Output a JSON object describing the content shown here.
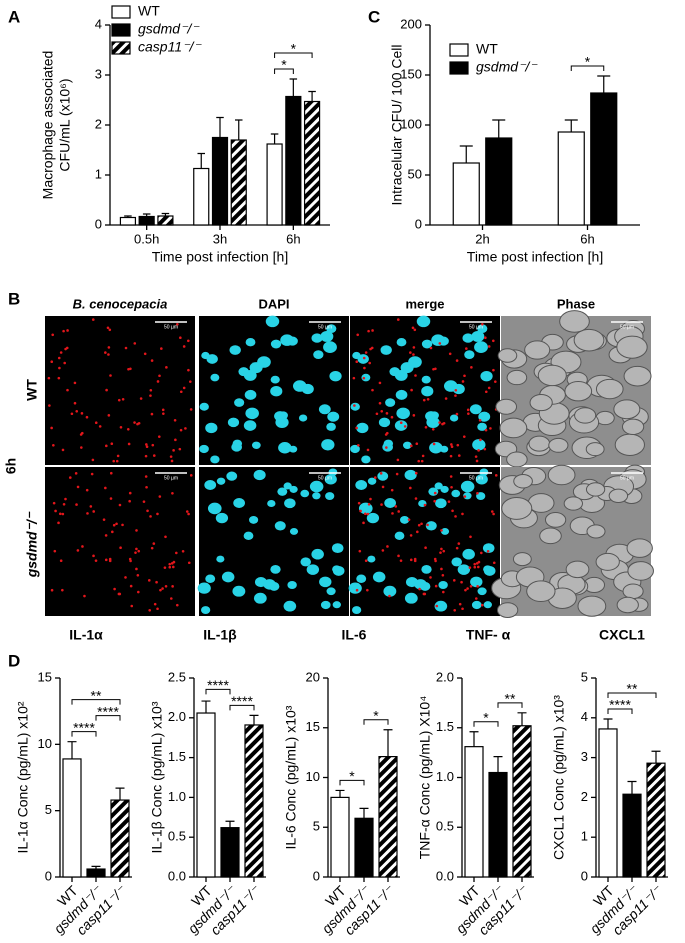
{
  "panel_labels": [
    "A",
    "B",
    "C",
    "D"
  ],
  "chart_data": [
    {
      "type": "bar",
      "ylabel": [
        "Macrophage associated",
        "CFU/mL (x10⁶)"
      ],
      "xlabel": "Time post infection [h]",
      "categories": [
        "0.5h",
        "3h",
        "6h"
      ],
      "series": [
        {
          "name": "WT",
          "color": "#ffffff",
          "values": [
            0.15,
            1.13,
            1.62
          ],
          "errors": [
            0.03,
            0.3,
            0.2
          ]
        },
        {
          "name": "gsdmd⁻/⁻",
          "color": "#000000",
          "values": [
            0.17,
            1.75,
            2.57
          ],
          "errors": [
            0.05,
            0.4,
            0.35
          ]
        },
        {
          "name": "casp11⁻/⁻",
          "color": "#000000",
          "hatch": true,
          "values": [
            0.18,
            1.7,
            2.47
          ],
          "errors": [
            0.05,
            0.4,
            0.2
          ]
        }
      ],
      "ylim": [
        0,
        4
      ],
      "yticks": [
        0,
        1,
        2,
        3,
        4
      ],
      "legend": "upper left",
      "significance": [
        {
          "category": 2,
          "pair": [
            0,
            1
          ],
          "label": "*"
        },
        {
          "category": 2,
          "pair": [
            0,
            2
          ],
          "label": "*"
        }
      ]
    },
    {
      "type": "bar",
      "ylabel": [
        "Intracelular CFU/ 100 Cell"
      ],
      "xlabel": "Time post infection [h]",
      "categories": [
        "2h",
        "6h"
      ],
      "series": [
        {
          "name": "WT",
          "color": "#ffffff",
          "values": [
            62,
            93
          ],
          "errors": [
            17,
            12
          ]
        },
        {
          "name": "gsdmd⁻/⁻",
          "color": "#000000",
          "values": [
            87,
            132
          ],
          "errors": [
            18,
            17
          ]
        }
      ],
      "ylim": [
        0,
        200
      ],
      "yticks": [
        0,
        50,
        100,
        150,
        200
      ],
      "legend": "upper left",
      "significance": [
        {
          "category": 1,
          "pair": [
            0,
            1
          ],
          "label": "*"
        }
      ]
    },
    {
      "type": "bar",
      "title": "IL-1α",
      "ylabel": [
        "IL-1α Conc (pg/mL) x10²"
      ],
      "categories": [
        "WT",
        "gsdmd⁻/⁻",
        "casp11⁻/⁻"
      ],
      "values": [
        8.9,
        0.6,
        5.8
      ],
      "errors": [
        1.3,
        0.2,
        0.9
      ],
      "colors": [
        "#ffffff",
        "#000000",
        "#000000"
      ],
      "hatched": [
        false,
        false,
        true
      ],
      "ylim": [
        0,
        15
      ],
      "yticks": [
        0,
        5,
        10,
        15
      ],
      "significance": [
        {
          "pair": [
            0,
            1
          ],
          "label": "****"
        },
        {
          "pair": [
            1,
            2
          ],
          "label": "****"
        },
        {
          "pair": [
            0,
            2
          ],
          "label": "**"
        }
      ]
    },
    {
      "type": "bar",
      "title": "IL-1β",
      "ylabel": [
        "IL-1β Conc (pg/mL) x10³"
      ],
      "categories": [
        "WT",
        "gsdmd⁻/⁻",
        "casp11⁻/⁻"
      ],
      "values": [
        2.06,
        0.62,
        1.91
      ],
      "errors": [
        0.15,
        0.08,
        0.12
      ],
      "colors": [
        "#ffffff",
        "#000000",
        "#000000"
      ],
      "hatched": [
        false,
        false,
        true
      ],
      "ylim": [
        0,
        2.5
      ],
      "yticks": [
        {
          "value": 0,
          "label": "0.0"
        },
        0.5,
        {
          "value": 1,
          "label": "1.0"
        },
        1.5,
        {
          "value": 2,
          "label": "2.0"
        },
        2.5
      ],
      "significance": [
        {
          "pair": [
            1,
            2
          ],
          "label": "****"
        },
        {
          "pair": [
            0,
            1
          ],
          "label": "****"
        }
      ]
    },
    {
      "type": "bar",
      "title": "IL-6",
      "ylabel": [
        "IL-6 Conc (pg/mL) x10³"
      ],
      "categories": [
        "WT",
        "gsdmd⁻/⁻",
        "casp11⁻/⁻"
      ],
      "values": [
        8.0,
        5.9,
        12.1
      ],
      "errors": [
        0.7,
        1.0,
        2.7
      ],
      "colors": [
        "#ffffff",
        "#000000",
        "#000000"
      ],
      "hatched": [
        false,
        false,
        true
      ],
      "ylim": [
        0,
        20
      ],
      "yticks": [
        0,
        5,
        10,
        15,
        20
      ],
      "significance": [
        {
          "pair": [
            0,
            1
          ],
          "label": "*"
        },
        {
          "pair": [
            1,
            2
          ],
          "label": "*"
        }
      ]
    },
    {
      "type": "bar",
      "title": "TNF- α",
      "ylabel": [
        "TNF-α Conc (pg/mL) X10⁴"
      ],
      "categories": [
        "WT",
        "gsdmd⁻/⁻",
        "casp11⁻/⁻"
      ],
      "values": [
        1.31,
        1.05,
        1.52
      ],
      "errors": [
        0.15,
        0.16,
        0.13
      ],
      "colors": [
        "#ffffff",
        "#000000",
        "#000000"
      ],
      "hatched": [
        false,
        false,
        true
      ],
      "ylim": [
        0,
        2
      ],
      "yticks": [
        {
          "value": 0,
          "label": "0.0"
        },
        0.5,
        {
          "value": 1,
          "label": "1.0"
        },
        1.5,
        {
          "value": 2,
          "label": "2.0"
        }
      ],
      "significance": [
        {
          "pair": [
            0,
            1
          ],
          "label": "*"
        },
        {
          "pair": [
            1,
            2
          ],
          "label": "**"
        }
      ]
    },
    {
      "type": "bar",
      "title": "CXCL1",
      "ylabel": [
        "CXCL1 Conc (pg/mL) x10³"
      ],
      "categories": [
        "WT",
        "gsdmd⁻/⁻",
        "casp11⁻/⁻"
      ],
      "values": [
        3.72,
        2.08,
        2.86
      ],
      "errors": [
        0.25,
        0.32,
        0.3
      ],
      "colors": [
        "#ffffff",
        "#000000",
        "#000000"
      ],
      "hatched": [
        false,
        false,
        true
      ],
      "ylim": [
        0,
        5
      ],
      "yticks": [
        0,
        1,
        2,
        3,
        4,
        5
      ],
      "significance": [
        {
          "pair": [
            0,
            1
          ],
          "label": "****"
        },
        {
          "pair": [
            0,
            2
          ],
          "label": "**"
        }
      ]
    }
  ],
  "panel_b": {
    "columns": [
      "B. cenocepacia",
      "DAPI",
      "merge",
      "Phase"
    ],
    "rows": [
      "WT",
      "gsdmd⁻/⁻"
    ],
    "timepoint": "6h",
    "scale_bar": "50 µm"
  }
}
